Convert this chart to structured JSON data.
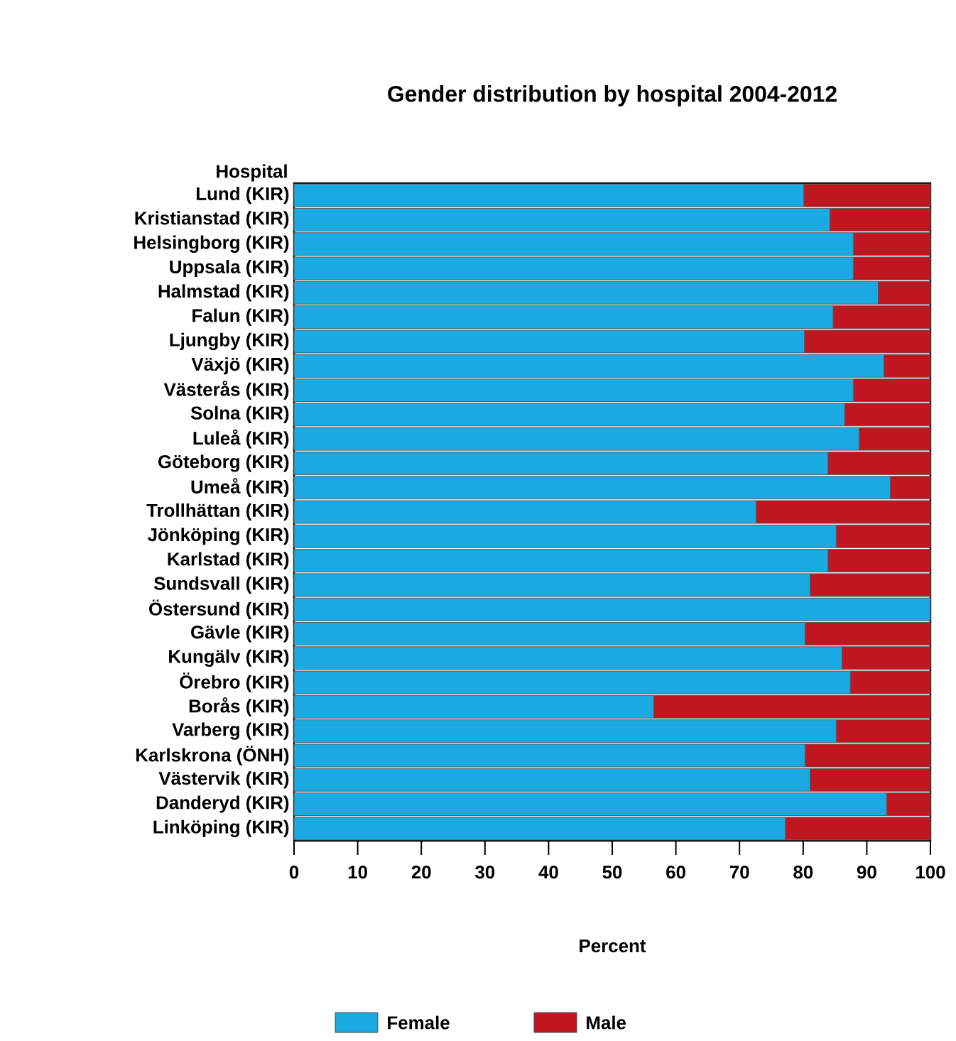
{
  "chart_data": {
    "type": "bar",
    "orientation": "horizontal",
    "stacked": true,
    "title": "Gender distribution by hospital 2004-2012",
    "xlabel": "Percent",
    "ylabel": "Hospital",
    "categories": [
      "Lund (KIR)",
      "Kristianstad (KIR)",
      "Helsingborg (KIR)",
      "Uppsala (KIR)",
      "Halmstad (KIR)",
      "Falun (KIR)",
      "Ljungby (KIR)",
      "Växjö (KIR)",
      "Västerås (KIR)",
      "Solna (KIR)",
      "Luleå (KIR)",
      "Göteborg (KIR)",
      "Umeå (KIR)",
      "Trollhättan (KIR)",
      "Jönköping (KIR)",
      "Karlstad (KIR)",
      "Sundsvall (KIR)",
      "Östersund (KIR)",
      "Gävle (KIR)",
      "Kungälv (KIR)",
      "Örebro (KIR)",
      "Borås (KIR)",
      "Varberg (KIR)",
      "Karlskrona (ÖNH)",
      "Västervik (KIR)",
      "Danderyd (KIR)",
      "Linköping (KIR)"
    ],
    "series": [
      {
        "name": "Female",
        "color": "#1ba9e1",
        "values": [
          80.1,
          84.2,
          87.9,
          87.9,
          91.8,
          84.7,
          80.2,
          92.7,
          87.9,
          86.5,
          88.8,
          83.9,
          93.7,
          72.6,
          85.2,
          83.9,
          81.1,
          100,
          80.3,
          86.1,
          87.4,
          56.5,
          85.2,
          80.3,
          81.1,
          93.1,
          77.2
        ]
      },
      {
        "name": "Male",
        "color": "#c0161f",
        "values": [
          19.9,
          15.8,
          12.1,
          12.1,
          8.2,
          15.3,
          19.8,
          7.3,
          12.1,
          13.5,
          11.2,
          16.1,
          6.3,
          27.4,
          14.8,
          16.1,
          18.9,
          0,
          19.7,
          13.9,
          12.6,
          43.5,
          14.8,
          19.7,
          18.9,
          6.9,
          22.8
        ]
      }
    ],
    "xlim": [
      0,
      100
    ],
    "xticks": [
      0,
      10,
      20,
      30,
      40,
      50,
      60,
      70,
      80,
      90,
      100
    ],
    "legend": "bottom"
  }
}
